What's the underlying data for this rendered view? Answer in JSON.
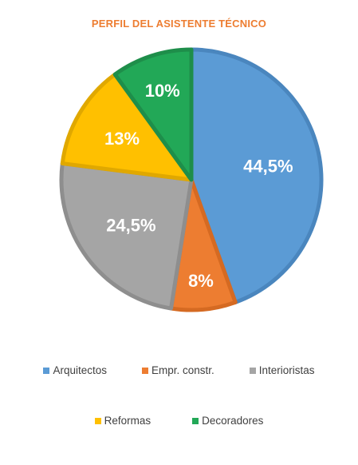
{
  "chart_data": {
    "type": "pie",
    "title": "PERFIL DEL ASISTENTE TÉCNICO",
    "legend_position": "bottom",
    "slices": [
      {
        "name": "Arquitectos",
        "value": 44.5,
        "label": "44,5%",
        "color": "#5B9BD5",
        "edge": "#4A86BE"
      },
      {
        "name": "Empr. constr.",
        "value": 8,
        "label": "8%",
        "color": "#ED7D31",
        "edge": "#D56A22"
      },
      {
        "name": "Interioristas",
        "value": 24.5,
        "label": "24,5%",
        "color": "#A5A5A5",
        "edge": "#8E8E8E"
      },
      {
        "name": "Reformas",
        "value": 13,
        "label": "13%",
        "color": "#FFC000",
        "edge": "#E0A800"
      },
      {
        "name": "Decoradores",
        "value": 10,
        "label": "10%",
        "color": "#22A857",
        "edge": "#1E8E4A"
      }
    ]
  }
}
